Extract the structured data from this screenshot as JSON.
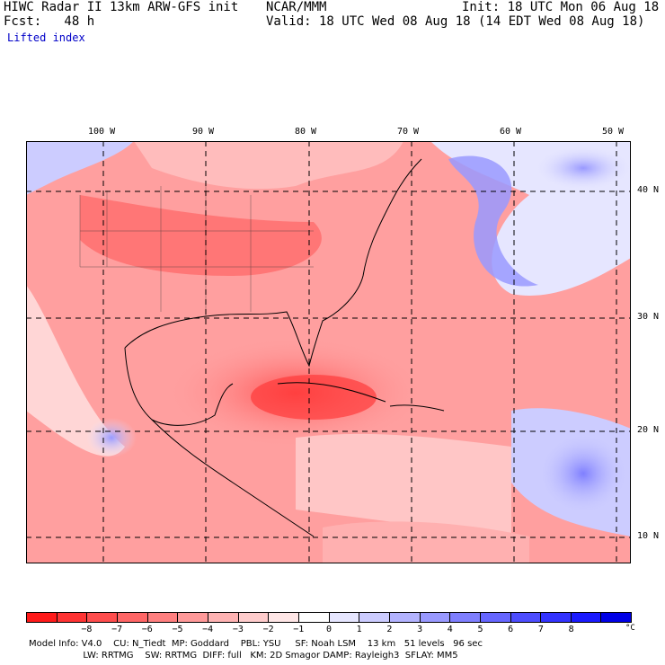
{
  "header": {
    "model": "HIWC Radar II 13km ARW-GFS init",
    "forecast_hour": "Fcst:   48 h",
    "agency": "NCAR/MMM",
    "init_time": "Init: 18 UTC Mon 06 Aug 18",
    "valid_time": "Valid: 18 UTC Wed 08 Aug 18 (14 EDT Wed 08 Aug 18)",
    "field": "Lifted index"
  },
  "map": {
    "longitude_labels": [
      "100 W",
      "90 W",
      "80 W",
      "70 W",
      "60 W",
      "50 W"
    ],
    "latitude_labels": [
      "40 N",
      "30 N",
      "20 N",
      "10 N"
    ]
  },
  "colorbar": {
    "colors": [
      "#ff1a1a",
      "#ff3333",
      "#ff4d4d",
      "#ff6666",
      "#ff7f7f",
      "#ff9999",
      "#ffb3b3",
      "#ffcccc",
      "#ffe6e6",
      "#ffffff",
      "#e6e6ff",
      "#ccccff",
      "#b3b3ff",
      "#9999ff",
      "#7f7fff",
      "#6666ff",
      "#4d4dff",
      "#3333ff",
      "#1a1aff",
      "#0000e6"
    ],
    "tick_labels": [
      "−8",
      "−7",
      "−6",
      "−5",
      "−4",
      "−3",
      "−2",
      "−1",
      "0",
      "1",
      "2",
      "3",
      "4",
      "5",
      "6",
      "7",
      "8"
    ],
    "unit": "°C"
  },
  "footer": {
    "line1": "Model Info: V4.0    CU: N_Tiedt  MP: Goddard    PBL: YSU     SF: Noah LSM    13 km   51 levels   96 sec",
    "line2": "                   LW: RRTMG    SW: RRTMG  DIFF: full   KM: 2D Smagor DAMP: Rayleigh3  SFLAY: MM5"
  }
}
